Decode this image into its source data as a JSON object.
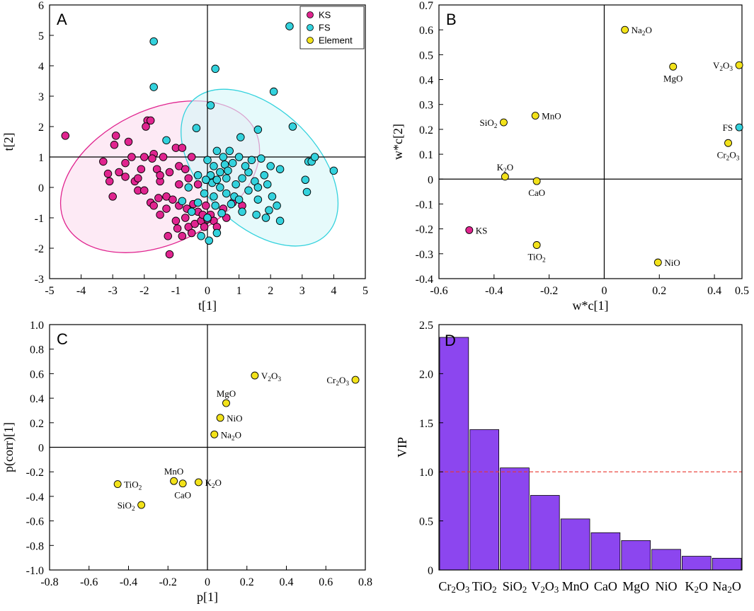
{
  "colors": {
    "ks": "#e0248f",
    "fs": "#33d2dd",
    "element": "#f2e21a",
    "bar": "#8c46ef",
    "ref_line": "#e8362e",
    "ks_fill": "#fbdcef",
    "fs_fill": "#d6f6f8",
    "overlap_fill": "#d6d8f2"
  },
  "chart_data": [
    {
      "id": "A",
      "type": "scatter",
      "panel_label": "A",
      "xlabel": "t[1]",
      "ylabel": "t[2]",
      "xlim": [
        -5,
        5
      ],
      "ylim": [
        -3,
        6
      ],
      "xticks": [
        "-5",
        "-4",
        "-3",
        "-2",
        "-1",
        "0",
        "1",
        "2",
        "3",
        "4",
        "5"
      ],
      "yticks": [
        "-3",
        "-2",
        "-1",
        "0",
        "1",
        "2",
        "3",
        "4",
        "5",
        "6"
      ],
      "legend": [
        "KS",
        "FS",
        "Element"
      ],
      "ellipses": [
        {
          "group": "KS",
          "cx": -1.5,
          "cy": 0.35,
          "rx": 3.35,
          "ry": 2.2,
          "angle": -26
        },
        {
          "group": "FS",
          "cx": 1.65,
          "cy": 0.65,
          "rx": 3.0,
          "ry": 1.9,
          "angle": 45
        }
      ],
      "series": [
        {
          "name": "KS",
          "points": [
            [
              -4.5,
              1.7
            ],
            [
              -3.3,
              0.85
            ],
            [
              -3.0,
              -0.3
            ],
            [
              -2.9,
              1.7
            ],
            [
              -2.95,
              1.4
            ],
            [
              -3.1,
              0.2
            ],
            [
              -2.8,
              0.5
            ],
            [
              -2.5,
              1.5
            ],
            [
              -2.4,
              1.0
            ],
            [
              -2.3,
              0.2
            ],
            [
              -2.6,
              0.8
            ],
            [
              -2.1,
              0.6
            ],
            [
              -2.0,
              1.0
            ],
            [
              -2.2,
              -0.1
            ],
            [
              -1.9,
              2.2
            ],
            [
              -1.95,
              2.0
            ],
            [
              -1.8,
              2.2
            ],
            [
              -1.7,
              1.1
            ],
            [
              -1.6,
              0.6
            ],
            [
              -1.5,
              0.2
            ],
            [
              -1.4,
              1.0
            ],
            [
              -1.3,
              -0.3
            ],
            [
              -1.2,
              0.5
            ],
            [
              -1.0,
              1.3
            ],
            [
              -0.9,
              0.7
            ],
            [
              -0.8,
              1.3
            ],
            [
              -0.7,
              0.6
            ],
            [
              -0.5,
              1.0
            ],
            [
              -0.6,
              0.3
            ],
            [
              -1.8,
              -0.5
            ],
            [
              -1.7,
              -0.6
            ],
            [
              -1.5,
              -0.9
            ],
            [
              -1.3,
              -0.7
            ],
            [
              -1.25,
              -1.6
            ],
            [
              -1.2,
              -2.2
            ],
            [
              -1.0,
              -1.1
            ],
            [
              -0.9,
              -0.6
            ],
            [
              -0.8,
              -1.6
            ],
            [
              -0.7,
              -1.0
            ],
            [
              -0.6,
              -1.3
            ],
            [
              -0.5,
              -1.5
            ],
            [
              -0.4,
              -1.2
            ],
            [
              -0.3,
              -0.8
            ],
            [
              -0.2,
              -1.1
            ],
            [
              -0.1,
              -1.3
            ],
            [
              -0.05,
              -0.6
            ],
            [
              0.1,
              -0.9
            ],
            [
              0.2,
              -1.1
            ],
            [
              0.3,
              -1.3
            ],
            [
              0.5,
              -0.7
            ],
            [
              0.6,
              -1.0
            ],
            [
              0.8,
              -0.5
            ],
            [
              1.1,
              -0.6
            ],
            [
              -2.0,
              -0.1
            ],
            [
              -1.1,
              -0.4
            ],
            [
              -0.3,
              0.1
            ],
            [
              -1.5,
              0.4
            ],
            [
              -2.2,
              0.3
            ],
            [
              -0.9,
              0.1
            ],
            [
              -0.45,
              -0.55
            ],
            [
              -0.15,
              -0.9
            ],
            [
              0.0,
              -1.05
            ],
            [
              -0.65,
              -0.7
            ],
            [
              -0.95,
              -1.35
            ],
            [
              -1.55,
              -0.35
            ],
            [
              -2.6,
              0.35
            ],
            [
              -3.15,
              0.45
            ],
            [
              -1.75,
              0.95
            ]
          ]
        },
        {
          "name": "FS",
          "points": [
            [
              -1.7,
              4.8
            ],
            [
              -1.7,
              3.3
            ],
            [
              0.25,
              3.9
            ],
            [
              0.1,
              2.7
            ],
            [
              2.6,
              5.3
            ],
            [
              2.1,
              3.15
            ],
            [
              2.7,
              2.0
            ],
            [
              1.6,
              1.9
            ],
            [
              1.05,
              1.65
            ],
            [
              -1.3,
              1.55
            ],
            [
              -0.35,
              1.95
            ],
            [
              3.2,
              0.85
            ],
            [
              3.3,
              0.85
            ],
            [
              3.4,
              1.0
            ],
            [
              3.1,
              0.25
            ],
            [
              3.15,
              -0.15
            ],
            [
              4.0,
              0.55
            ],
            [
              2.0,
              0.7
            ],
            [
              2.3,
              0.6
            ],
            [
              1.8,
              0.4
            ],
            [
              1.5,
              0.2
            ],
            [
              1.3,
              0.5
            ],
            [
              1.6,
              0.0
            ],
            [
              2.05,
              -0.3
            ],
            [
              2.2,
              -0.6
            ],
            [
              1.95,
              -0.75
            ],
            [
              1.6,
              -0.4
            ],
            [
              1.55,
              -0.9
            ],
            [
              1.85,
              -1.0
            ],
            [
              2.3,
              -1.1
            ],
            [
              1.1,
              -0.8
            ],
            [
              0.75,
              -0.55
            ],
            [
              0.3,
              -1.5
            ],
            [
              0.05,
              -1.75
            ],
            [
              -0.2,
              -1.6
            ],
            [
              -0.5,
              -0.8
            ],
            [
              -0.8,
              -0.45
            ],
            [
              -0.6,
              0.0
            ],
            [
              -0.3,
              0.4
            ],
            [
              0.0,
              0.9
            ],
            [
              0.2,
              0.7
            ],
            [
              0.4,
              0.5
            ],
            [
              0.6,
              0.3
            ],
            [
              0.8,
              0.8
            ],
            [
              1.0,
              1.0
            ],
            [
              1.2,
              0.7
            ],
            [
              0.7,
              1.2
            ],
            [
              0.5,
              1.0
            ],
            [
              0.3,
              1.2
            ],
            [
              0.1,
              0.4
            ],
            [
              -0.1,
              -0.2
            ],
            [
              -0.3,
              -0.5
            ],
            [
              0.0,
              -1.0
            ],
            [
              0.2,
              -0.3
            ],
            [
              0.4,
              0.0
            ],
            [
              0.6,
              -0.2
            ],
            [
              0.9,
              0.1
            ],
            [
              1.1,
              0.3
            ],
            [
              1.3,
              -0.1
            ],
            [
              1.4,
              0.9
            ],
            [
              0.85,
              -0.3
            ],
            [
              0.45,
              -0.85
            ],
            [
              0.15,
              0.15
            ],
            [
              0.55,
              0.75
            ],
            [
              1.7,
              0.95
            ],
            [
              1.9,
              0.1
            ],
            [
              1.0,
              -0.4
            ],
            [
              0.65,
              0.55
            ],
            [
              0.25,
              -0.6
            ],
            [
              -0.05,
              0.25
            ],
            [
              0.3,
              0.25
            ]
          ]
        }
      ]
    },
    {
      "id": "B",
      "type": "scatter",
      "panel_label": "B",
      "xlabel": "w*c[1]",
      "ylabel": "w*c[2]",
      "xlim": [
        -0.6,
        0.5
      ],
      "ylim": [
        -0.4,
        0.7
      ],
      "xticks": [
        "-0.6",
        "-0.4",
        "-0.2",
        "0",
        "0.2",
        "0.4",
        "0.5"
      ],
      "yticks": [
        "-0.4",
        "-0.3",
        "-0.2",
        "-0.1",
        "0",
        "0.1",
        "0.2",
        "0.3",
        "0.4",
        "0.5",
        "0.6",
        "0.7"
      ],
      "series": [
        {
          "name": "Element",
          "points": [
            {
              "x": 0.075,
              "y": 0.6,
              "label": "Na2O",
              "pos": "right"
            },
            {
              "x": 0.25,
              "y": 0.452,
              "label": "MgO",
              "pos": "below"
            },
            {
              "x": 0.49,
              "y": 0.458,
              "label": "V2O3",
              "pos": "left"
            },
            {
              "x": -0.25,
              "y": 0.255,
              "label": "MnO",
              "pos": "right"
            },
            {
              "x": -0.365,
              "y": 0.228,
              "label": "SiO2",
              "pos": "left"
            },
            {
              "x": 0.45,
              "y": 0.145,
              "label": "Cr2O3",
              "pos": "below"
            },
            {
              "x": -0.36,
              "y": 0.01,
              "label": "K2O",
              "pos": "above"
            },
            {
              "x": -0.245,
              "y": -0.008,
              "label": "CaO",
              "pos": "below"
            },
            {
              "x": -0.245,
              "y": -0.265,
              "label": "TiO2",
              "pos": "below"
            },
            {
              "x": 0.195,
              "y": -0.335,
              "label": "NiO",
              "pos": "right"
            }
          ]
        },
        {
          "name": "KS",
          "points": [
            {
              "x": -0.49,
              "y": -0.205,
              "label": "KS",
              "pos": "right"
            }
          ]
        },
        {
          "name": "FS",
          "points": [
            {
              "x": 0.49,
              "y": 0.208,
              "label": "FS",
              "pos": "left"
            }
          ]
        }
      ]
    },
    {
      "id": "C",
      "type": "scatter",
      "panel_label": "C",
      "xlabel": "p[1]",
      "ylabel": "p(corr)[1]",
      "xlim": [
        -0.8,
        0.8
      ],
      "ylim": [
        -1.0,
        1.0
      ],
      "xticks": [
        "-0.8",
        "-0.6",
        "-0.4",
        "-0.2",
        "0",
        "0.2",
        "0.4",
        "0.6",
        "0.8"
      ],
      "yticks": [
        "-1.0",
        "-0.8",
        "-0.6",
        "-0.4",
        "-0.2",
        "0",
        "0.2",
        "0.4",
        "0.6",
        "0.8",
        "1.0"
      ],
      "series": [
        {
          "name": "Element",
          "points": [
            {
              "x": 0.24,
              "y": 0.585,
              "label": "V2O3",
              "pos": "right"
            },
            {
              "x": 0.75,
              "y": 0.55,
              "label": "Cr2O3",
              "pos": "left"
            },
            {
              "x": 0.095,
              "y": 0.36,
              "label": "MgO",
              "pos": "above"
            },
            {
              "x": 0.065,
              "y": 0.24,
              "label": "NiO",
              "pos": "right"
            },
            {
              "x": 0.035,
              "y": 0.105,
              "label": "Na2O",
              "pos": "right"
            },
            {
              "x": -0.455,
              "y": -0.3,
              "label": "TiO2",
              "pos": "right"
            },
            {
              "x": -0.335,
              "y": -0.47,
              "label": "SiO2",
              "pos": "left"
            },
            {
              "x": -0.17,
              "y": -0.275,
              "label": "MnO",
              "pos": "above"
            },
            {
              "x": -0.125,
              "y": -0.295,
              "label": "CaO",
              "pos": "below"
            },
            {
              "x": -0.045,
              "y": -0.285,
              "label": "K2O",
              "pos": "right"
            }
          ]
        }
      ]
    },
    {
      "id": "D",
      "type": "bar",
      "panel_label": "D",
      "xlabel": "",
      "ylabel": "VIP",
      "ylim": [
        0,
        2.5
      ],
      "yticks": [
        "0",
        "0.5",
        "1.0",
        "1.5",
        "2.0",
        "2.5"
      ],
      "reference_line": 1.0,
      "categories": [
        "Cr2O3",
        "TiO2",
        "SiO2",
        "V2O3",
        "MnO",
        "CaO",
        "MgO",
        "NiO",
        "K2O",
        "Na2O"
      ],
      "values": [
        2.37,
        1.43,
        1.04,
        0.76,
        0.52,
        0.38,
        0.3,
        0.21,
        0.14,
        0.12
      ]
    }
  ]
}
